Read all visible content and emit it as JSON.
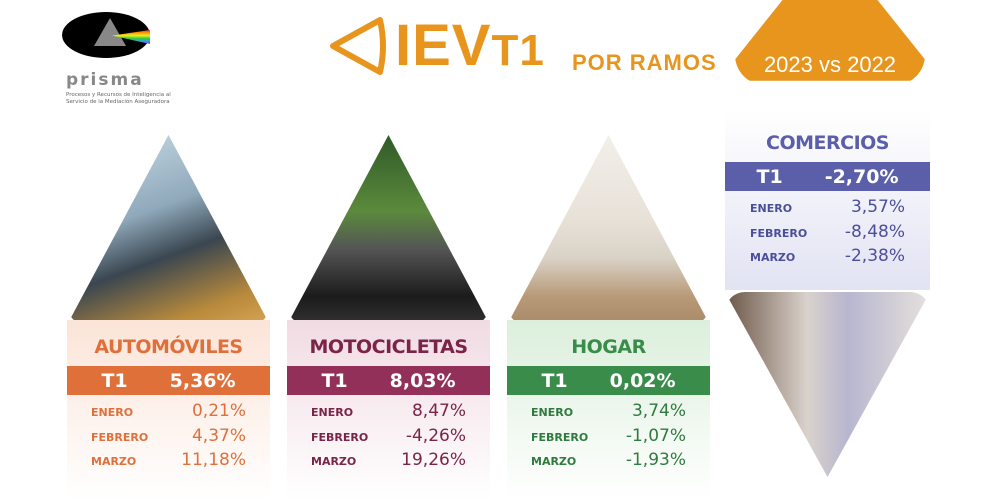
{
  "logo": {
    "name": "prisma",
    "tagline": "Procesos y Recursos de Inteligencia al Servicio de la Mediación Aseguradora"
  },
  "header": {
    "title_main": "IEV",
    "title_suffix": "T1",
    "subtitle": "POR RAMOS",
    "badge": "2023 vs 2022",
    "accent": "#e8951e"
  },
  "cards": [
    {
      "name": "AUTOMÓVILES",
      "color": "#e0703a",
      "t1_label": "T1",
      "t1": "5,36%",
      "months": [
        {
          "m": "ENERO",
          "v": "0,21%"
        },
        {
          "m": "FEBRERO",
          "v": "4,37%"
        },
        {
          "m": "MARZO",
          "v": "11,18%"
        }
      ]
    },
    {
      "name": "MOTOCICLETAS",
      "color": "#93305a",
      "t1_label": "T1",
      "t1": "8,03%",
      "months": [
        {
          "m": "ENERO",
          "v": "8,47%"
        },
        {
          "m": "FEBRERO",
          "v": "-4,26%"
        },
        {
          "m": "MARZO",
          "v": "19,26%"
        }
      ]
    },
    {
      "name": "HOGAR",
      "color": "#3a8c4a",
      "t1_label": "T1",
      "t1": "0,02%",
      "months": [
        {
          "m": "ENERO",
          "v": "3,74%"
        },
        {
          "m": "FEBRERO",
          "v": "-1,07%"
        },
        {
          "m": "MARZO",
          "v": "-1,93%"
        }
      ]
    },
    {
      "name": "COMERCIOS",
      "color": "#5b5faa",
      "t1_label": "T1",
      "t1": "-2,70%",
      "months": [
        {
          "m": "ENERO",
          "v": "3,57%"
        },
        {
          "m": "FEBRERO",
          "v": "-8,48%"
        },
        {
          "m": "MARZO",
          "v": "-2,38%"
        }
      ]
    }
  ]
}
